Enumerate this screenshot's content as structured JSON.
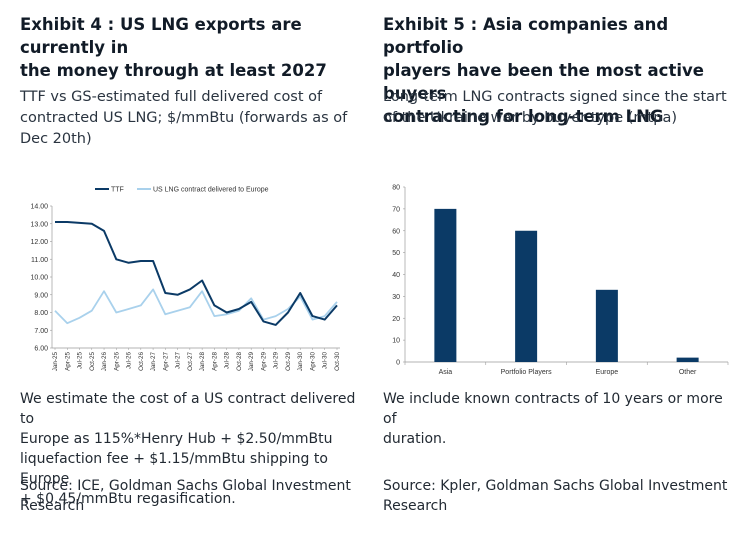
{
  "exhibits": [
    {
      "title": "Exhibit 4 : US LNG exports are currently in\nthe money through at least 2027",
      "subtitle": "TTF vs GS-estimated full delivered cost of\ncontracted US LNG; $/mmBtu (forwards as of\nDec 20th)",
      "note": "We estimate the cost of a US contract delivered to\nEurope as 115%*Henry Hub + $2.50/mmBtu\nliquefaction fee + $1.15/mmBtu shipping to Europe\n+ $0.45/mmBtu regasification.",
      "source": "Source: ICE, Goldman Sachs Global Investment\nResearch"
    },
    {
      "title": "Exhibit 5 : Asia companies and portfolio\nplayers have been the most active buyers\ncontracting for long-term LNG",
      "subtitle": "Long-term LNG contracts signed since the start\nof the Ukraine war by buyer type (mtpa)",
      "note": "We include known contracts of 10 years or more of\nduration.",
      "source": "Source: Kpler, Goldman Sachs Global Investment\nResearch"
    }
  ],
  "colors": {
    "ttf": "#0b3a66",
    "us_lng": "#a9d1ec",
    "bar": "#0b3a66",
    "axis": "#9a9a9a"
  },
  "chart_data": [
    {
      "type": "line",
      "legend_position": "top",
      "ylim": [
        6,
        14
      ],
      "y_ticks": [
        "6.00",
        "7.00",
        "8.00",
        "9.00",
        "10.00",
        "11.00",
        "12.00",
        "13.00",
        "14.00"
      ],
      "x": [
        "Jan-25",
        "Apr-25",
        "Jul-25",
        "Oct-25",
        "Jan-26",
        "Apr-26",
        "Jul-26",
        "Oct-26",
        "Jan-27",
        "Apr-27",
        "Jul-27",
        "Oct-27",
        "Jan-28",
        "Apr-28",
        "Jul-28",
        "Oct-28",
        "Jan-29",
        "Apr-29",
        "Jul-29",
        "Oct-29",
        "Jan-30",
        "Apr-30",
        "Jul-30",
        "Oct-30"
      ],
      "x_tick_labels": [
        "Jan-25",
        "Apr-25",
        "Jul-25",
        "Oct-25",
        "Jan-26",
        "Apr-26",
        "Jul-26",
        "Oct-26",
        "Jan-27",
        "Apr-27",
        "Jul-27",
        "Oct-27",
        "Jan-28",
        "Apr-28",
        "Jul-28",
        "Oct-28",
        "Jan-29",
        "Apr-29",
        "Jul-29",
        "Oct-29",
        "Jan-30",
        "Apr-30",
        "Jul-30",
        "Oct-30"
      ],
      "series": [
        {
          "name": "TTF",
          "values": [
            13.1,
            13.1,
            13.05,
            13.0,
            12.6,
            11.0,
            10.8,
            10.9,
            10.9,
            9.1,
            9.0,
            9.3,
            9.8,
            8.4,
            8.0,
            8.2,
            8.6,
            7.5,
            7.3,
            8.0,
            9.1,
            7.8,
            7.6,
            8.4
          ]
        },
        {
          "name": "US LNG contract delivered to Europe",
          "values": [
            8.1,
            7.4,
            7.7,
            8.1,
            9.2,
            8.0,
            8.2,
            8.4,
            9.3,
            7.9,
            8.1,
            8.3,
            9.2,
            7.8,
            7.9,
            8.1,
            8.8,
            7.6,
            7.8,
            8.2,
            8.9,
            7.6,
            7.8,
            8.6
          ]
        }
      ]
    },
    {
      "type": "bar",
      "ylim": [
        0,
        80
      ],
      "y_ticks": [
        "0",
        "10",
        "20",
        "30",
        "40",
        "50",
        "60",
        "70",
        "80"
      ],
      "categories": [
        "Asia",
        "Portfolio Players",
        "Europe",
        "Other"
      ],
      "values": [
        70,
        60,
        33,
        2
      ]
    }
  ]
}
